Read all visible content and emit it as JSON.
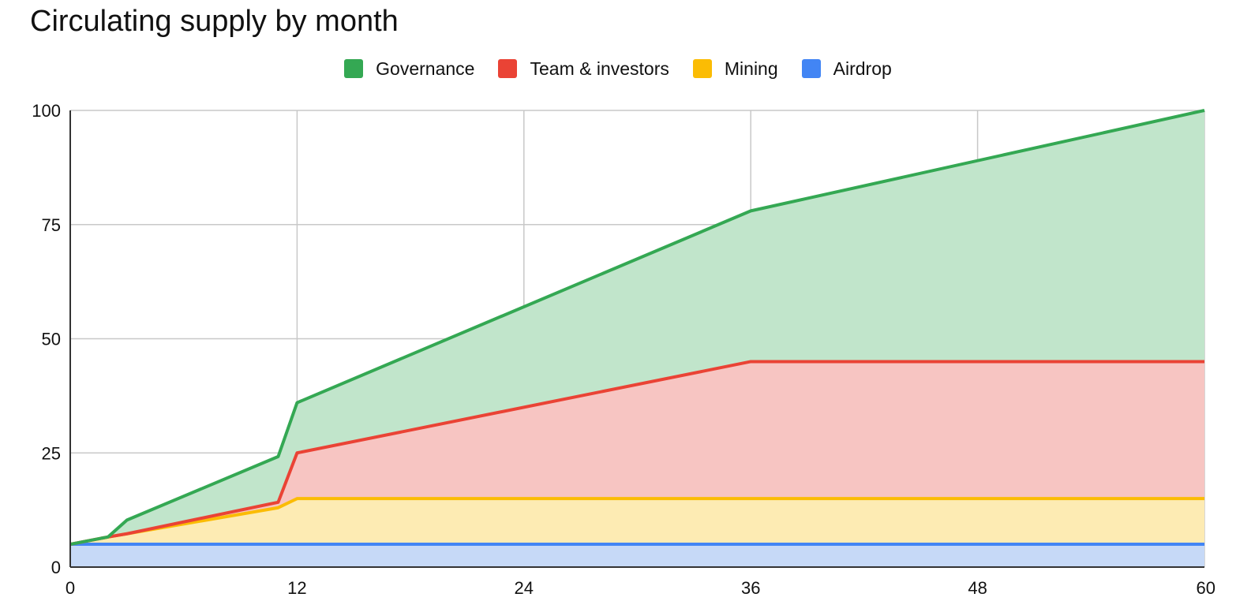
{
  "chart_data": {
    "type": "area",
    "stacked": true,
    "title": "Circulating supply by month",
    "xlabel": "",
    "ylabel": "",
    "xlim": [
      0,
      60
    ],
    "ylim": [
      0,
      100
    ],
    "x_ticks": [
      "0",
      "12",
      "24",
      "36",
      "48",
      "60"
    ],
    "y_ticks": [
      "0",
      "25",
      "50",
      "75",
      "100"
    ],
    "grid": true,
    "legend_position": "top",
    "x": [
      0,
      2,
      3,
      11,
      12,
      36,
      60
    ],
    "series": [
      {
        "name": "Airdrop",
        "color": "#4285F4",
        "fill": "#C6D9F7",
        "values": [
          5,
          5,
          5,
          5,
          5,
          5,
          5
        ]
      },
      {
        "name": "Mining",
        "color": "#FBBC04",
        "fill": "#FDEBB3",
        "values": [
          0,
          1.6,
          2.3,
          8,
          10,
          10,
          10
        ]
      },
      {
        "name": "Team & investors",
        "color": "#EA4335",
        "fill": "#F7C5C2",
        "values": [
          0,
          0,
          0,
          1.2,
          10,
          30,
          30
        ]
      },
      {
        "name": "Governance",
        "color": "#34A853",
        "fill": "#C1E5CB",
        "values": [
          0,
          0,
          3,
          10,
          11,
          33,
          55
        ]
      }
    ],
    "legend_order": [
      "Governance",
      "Team & investors",
      "Mining",
      "Airdrop"
    ]
  }
}
